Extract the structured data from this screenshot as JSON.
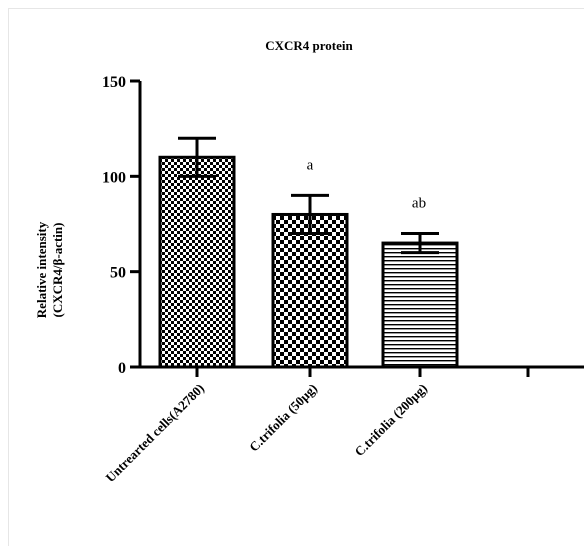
{
  "chart_data": {
    "type": "bar",
    "title": "CXCR4 protein",
    "ylabel_line1": "Relative intensity",
    "ylabel_line2": "(CXCR4/β-actin)",
    "xlabel": "",
    "ylim": [
      0,
      150
    ],
    "yticks": [
      0,
      50,
      100,
      150
    ],
    "categories": [
      "Untrearted cells(A2780)",
      "C.trifolia (50μg)",
      "C.trifolia (200μg)"
    ],
    "values": [
      110,
      80,
      65
    ],
    "errors": [
      10,
      10,
      5
    ],
    "annotations": [
      "",
      "a",
      "ab"
    ],
    "patterns": [
      "checker-fine",
      "checker-coarse",
      "horizontal-lines"
    ],
    "grid": false,
    "legend": "none"
  },
  "colors": {
    "ink": "#000000",
    "background": "#ffffff"
  }
}
